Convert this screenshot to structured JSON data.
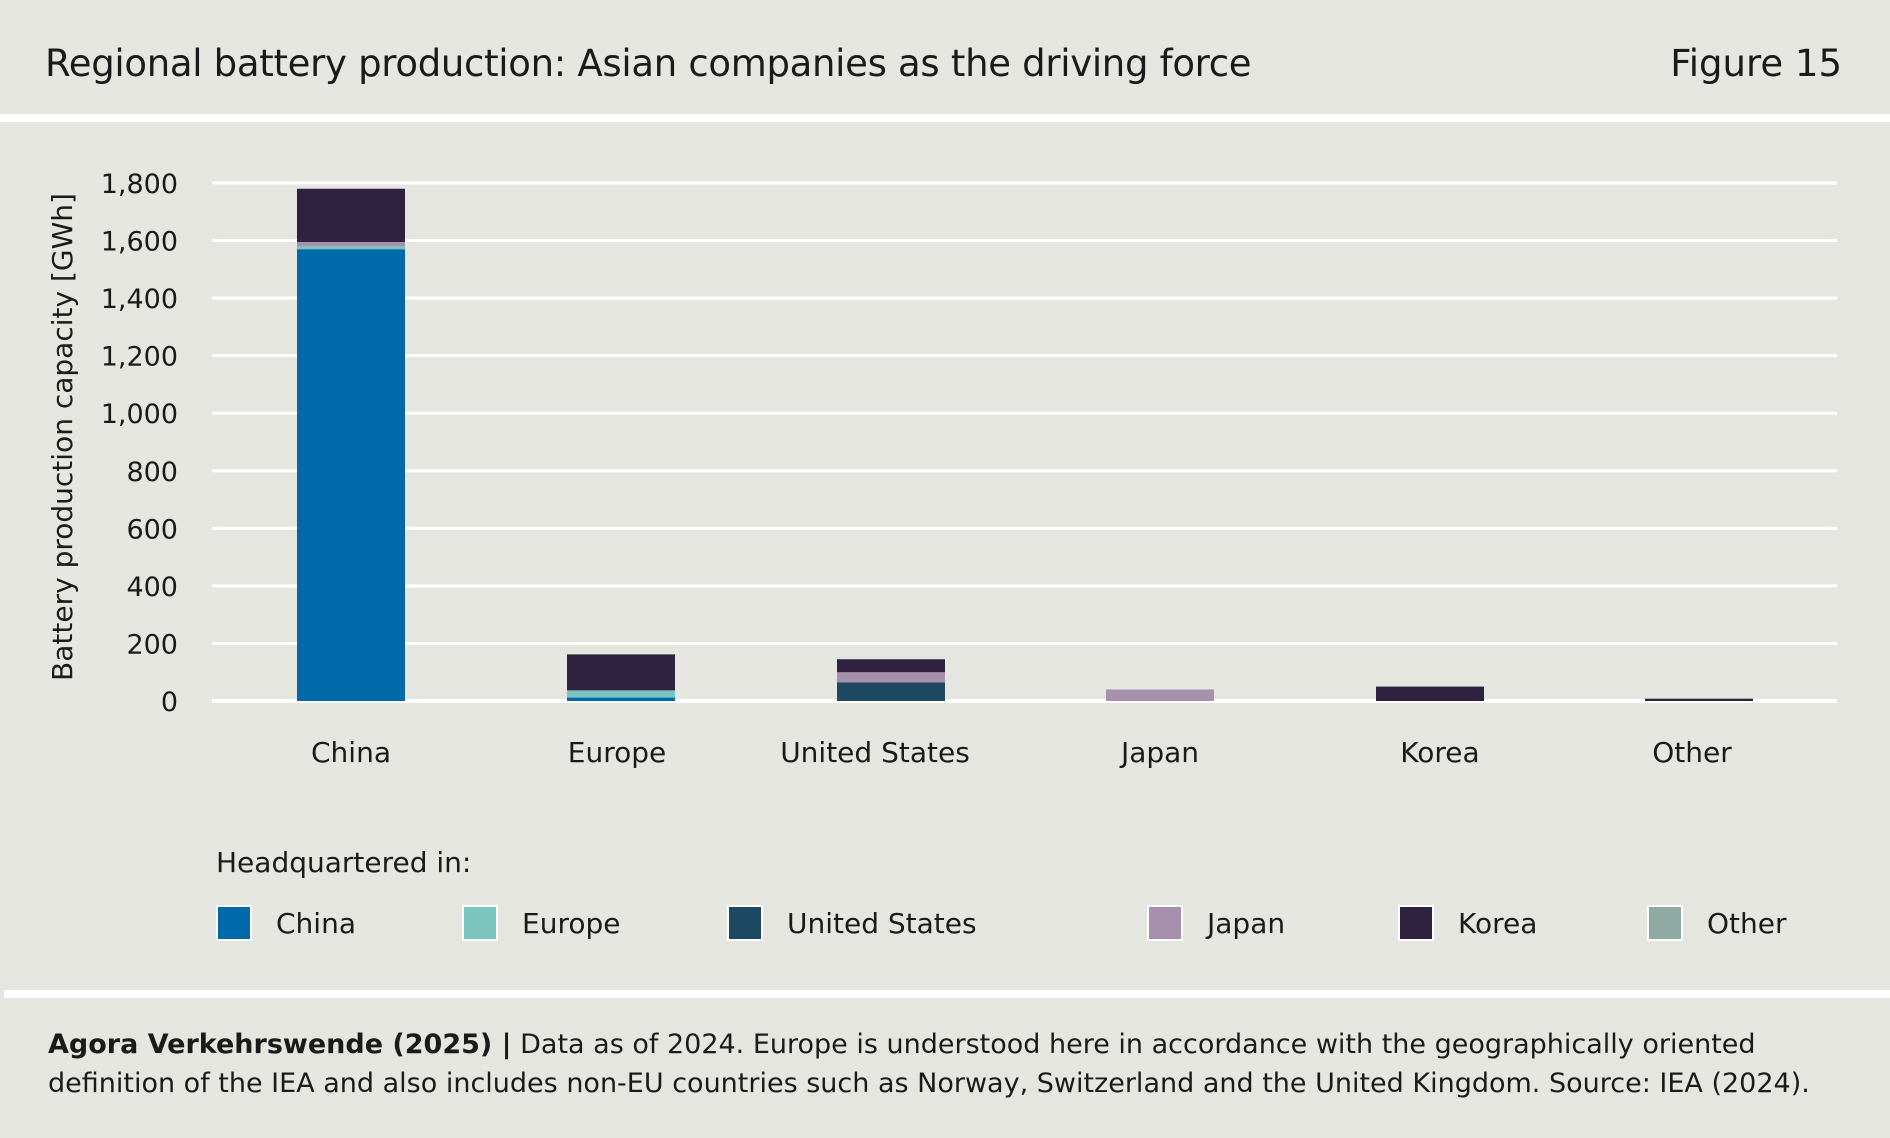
{
  "header": {
    "title": "Regional battery production: Asian companies as the driving force",
    "figure": "Figure 15"
  },
  "legend": {
    "heading": "Headquartered in:"
  },
  "footer": {
    "source": "Agora Verkehrswende (2025) |",
    "note": "Data as of 2024. Europe is understood here in accordance with the geographically oriented definition of the IEA and also includes non-EU countries such as Norway, Switzerland and the United Kingdom. Source: IEA (2024)."
  },
  "colors": {
    "China": "#0069aa",
    "Europe": "#7cc4be",
    "United States": "#1c4862",
    "Japan": "#a690ae",
    "Korea": "#2f2240",
    "Other": "#8fa9a3",
    "gridline": "#ffffff",
    "background": "#e6e6e1"
  },
  "chart_data": {
    "type": "bar",
    "stacked": true,
    "ylabel": "Battery production capacity [GWh]",
    "xlabel": "",
    "ylim": [
      0,
      1800
    ],
    "yticks": [
      0,
      200,
      400,
      600,
      800,
      1000,
      1200,
      1400,
      1600,
      1800
    ],
    "ytick_labels": [
      "0",
      "200",
      "400",
      "600",
      "800",
      "1,000",
      "1,200",
      "1,400",
      "1,600",
      "1,800"
    ],
    "grid": true,
    "legend_position": "bottom",
    "categories": [
      "China",
      "Europe",
      "United States",
      "Japan",
      "Korea",
      "Other"
    ],
    "series": [
      {
        "name": "China",
        "values": [
          1570,
          12,
          0,
          0,
          0,
          0
        ]
      },
      {
        "name": "Europe",
        "values": [
          10,
          25,
          0,
          0,
          0,
          0
        ]
      },
      {
        "name": "United States",
        "values": [
          0,
          0,
          65,
          0,
          0,
          0
        ]
      },
      {
        "name": "Japan",
        "values": [
          15,
          0,
          35,
          40,
          0,
          0
        ]
      },
      {
        "name": "Korea",
        "values": [
          185,
          125,
          45,
          0,
          50,
          8
        ]
      },
      {
        "name": "Other",
        "values": [
          0,
          0,
          0,
          0,
          0,
          0
        ]
      }
    ]
  }
}
